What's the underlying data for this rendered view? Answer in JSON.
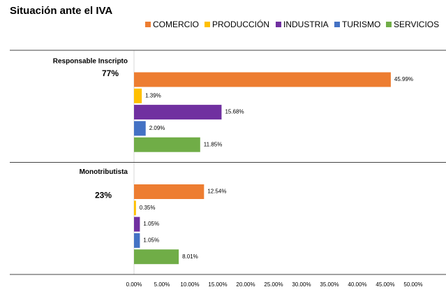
{
  "chart_data": {
    "type": "hbar",
    "title": "Situación ante el IVA",
    "categories": [
      "Responsable Inscripto",
      "Monotributista"
    ],
    "category_share_labels": [
      "77%",
      "23%"
    ],
    "series": [
      {
        "name": "COMERCIO",
        "color": "#ED7D31",
        "values": [
          45.99,
          12.54
        ],
        "value_labels": [
          "45.99%",
          "12.54%"
        ]
      },
      {
        "name": "PRODUCCIÓN",
        "color": "#FFC000",
        "values": [
          1.39,
          0.35
        ],
        "value_labels": [
          "1.39%",
          "0.35%"
        ]
      },
      {
        "name": "INDUSTRIA",
        "color": "#7030A0",
        "values": [
          15.68,
          1.05
        ],
        "value_labels": [
          "15.68%",
          "1.05%"
        ]
      },
      {
        "name": "TURISMO",
        "color": "#4472C4",
        "values": [
          2.09,
          1.05
        ],
        "value_labels": [
          "2.09%",
          "1.05%"
        ]
      },
      {
        "name": "SERVICIOS",
        "color": "#70AD47",
        "values": [
          11.85,
          8.01
        ],
        "value_labels": [
          "11.85%",
          "8.01%"
        ]
      }
    ],
    "xlim": [
      0,
      50
    ],
    "xticks": [
      {
        "value": 0,
        "label": "0.00%"
      },
      {
        "value": 5,
        "label": "5.00%"
      },
      {
        "value": 10,
        "label": "10.00%"
      },
      {
        "value": 15,
        "label": "15.00%"
      },
      {
        "value": 20,
        "label": "20.00%"
      },
      {
        "value": 25,
        "label": "25.00%"
      },
      {
        "value": 30,
        "label": "30.00%"
      },
      {
        "value": 35,
        "label": "35.00%"
      },
      {
        "value": 40,
        "label": "40.00%"
      },
      {
        "value": 45,
        "label": "45.00%"
      },
      {
        "value": 50,
        "label": "50.00%"
      }
    ],
    "legend": "top-right"
  }
}
